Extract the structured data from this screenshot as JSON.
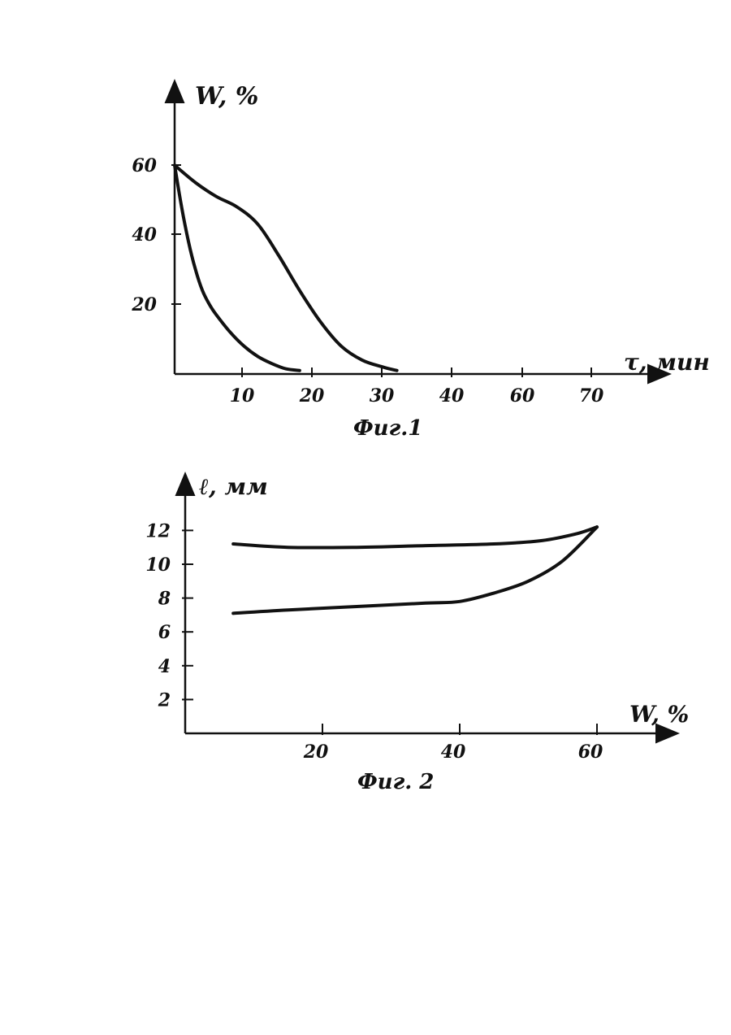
{
  "page": {
    "background": "#ffffff",
    "ink": "#111111"
  },
  "chart_data": [
    {
      "type": "line",
      "caption": "Фиг.1",
      "xlabel": "τ, мин",
      "ylabel": "W, %",
      "x_ticks": [
        "10",
        "20",
        "30",
        "40",
        "60",
        "70"
      ],
      "y_ticks": [
        "20",
        "40",
        "60"
      ],
      "series": [
        {
          "x": [
            0,
            1,
            2,
            3,
            4,
            5,
            6,
            8,
            10,
            12,
            14,
            16,
            18
          ],
          "y": [
            60,
            48,
            38,
            30,
            24,
            20,
            17,
            12,
            8,
            5,
            3,
            1.5,
            1
          ]
        },
        {
          "x": [
            0,
            3,
            6,
            9,
            12,
            15,
            18,
            21,
            24,
            27,
            30,
            32
          ],
          "y": [
            60,
            55,
            51,
            48,
            43,
            34,
            24,
            15,
            8,
            4,
            2,
            1
          ]
        }
      ]
    },
    {
      "type": "line",
      "caption": "Фиг. 2",
      "xlabel": "W, %",
      "ylabel": "ℓ, мм",
      "x_ticks": [
        "20",
        "40",
        "60"
      ],
      "y_ticks": [
        "2",
        "4",
        "6",
        "8",
        "10",
        "12"
      ],
      "series": [
        {
          "x": [
            7,
            15,
            25,
            35,
            45,
            52,
            57,
            60
          ],
          "y": [
            11.2,
            11.0,
            11.0,
            11.1,
            11.2,
            11.4,
            11.8,
            12.2
          ]
        },
        {
          "x": [
            7,
            15,
            25,
            35,
            40,
            45,
            50,
            55,
            60
          ],
          "y": [
            7.1,
            7.3,
            7.5,
            7.7,
            7.8,
            8.3,
            9.0,
            10.2,
            12.2
          ]
        }
      ]
    }
  ]
}
